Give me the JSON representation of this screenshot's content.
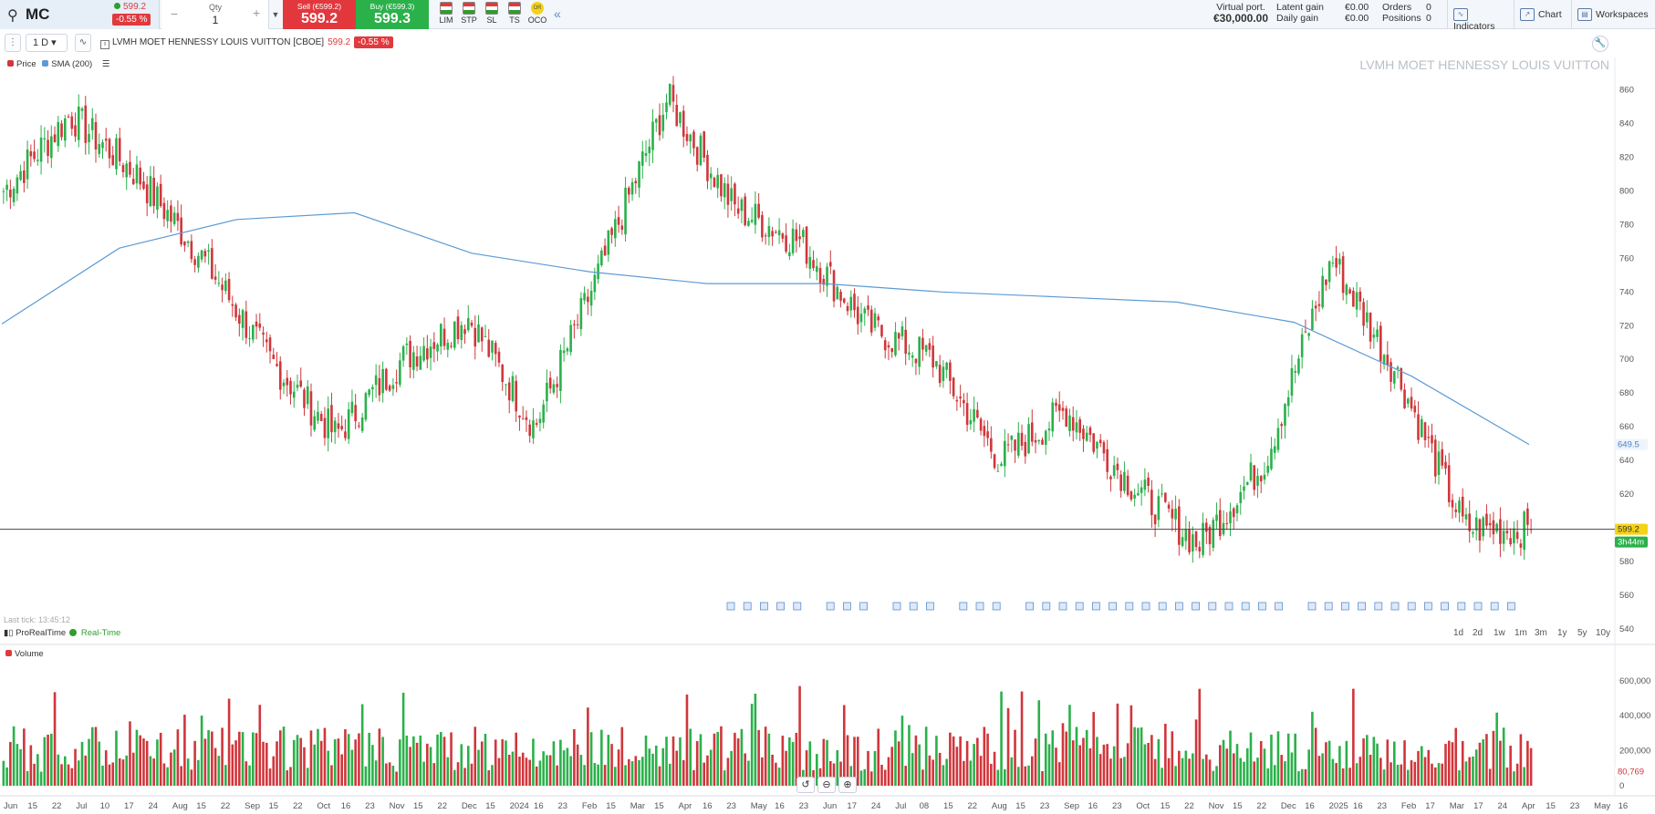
{
  "header": {
    "symbol": "MC",
    "last_price": "599.2",
    "change_pct": "-0.55 %",
    "qty_label": "Qty",
    "qty_value": "1",
    "sell_label": "Sell (€599.2)",
    "sell_price": "599.2",
    "buy_label": "Buy (€599.3)",
    "buy_price": "599.3",
    "order_types": [
      "LIM",
      "STP",
      "SL",
      "TS",
      "OCO"
    ],
    "virtual_port_label": "Virtual port.",
    "virtual_port_value": "€30,000.00",
    "latent_gain_label": "Latent gain",
    "latent_gain_value": "€0.00",
    "daily_gain_label": "Daily gain",
    "daily_gain_value": "€0.00",
    "orders_label": "Orders",
    "orders_value": "0",
    "positions_label": "Positions",
    "positions_value": "0",
    "indicators_btn": "Indicators",
    "chart_btn": "Chart",
    "workspaces_btn": "Workspaces"
  },
  "chartbar": {
    "timeframe": "1 D",
    "instrument": "LVMH MOET HENNESSY LOUIS VUITTON [CBOE]",
    "price": "599.2",
    "change_pct": "-0.55 %"
  },
  "legend": {
    "price": "Price",
    "sma": "SMA (200)",
    "volume": "Volume"
  },
  "watermark": "LVMH MOET HENNESSY LOUIS VUITTON",
  "status": {
    "last_tick": "Last tick: 13:45:12",
    "feed": "ProRealTime",
    "realtime": "Real-Time"
  },
  "periods": [
    "1d",
    "2d",
    "1w",
    "1m",
    "3m",
    "1y",
    "5y",
    "10y"
  ],
  "price_axis": [
    "860",
    "840",
    "820",
    "800",
    "780",
    "760",
    "740",
    "720",
    "700",
    "680",
    "660",
    "640",
    "620",
    "580",
    "560",
    "540"
  ],
  "price_tags": {
    "sma": "649.5",
    "last": "599.2",
    "countdown": "3h44m"
  },
  "volume_axis": [
    "600,000",
    "400,000",
    "200,000",
    "0"
  ],
  "volume_tag": "80,769",
  "colors": {
    "up": "#2ab14a",
    "down": "#d0363b",
    "sma": "#5b9bd5",
    "sell": "#e2383d",
    "buy": "#2ab14a"
  },
  "chart_data": {
    "type": "candlestick",
    "title": "LVMH MOET HENNESSY LOUIS VUITTON [CBOE]",
    "series": [
      {
        "name": "Price",
        "note": "daily closes (approx.)",
        "x": [
          "Jun",
          "Jul",
          "Aug",
          "Sep",
          "Oct",
          "Nov",
          "Dec",
          "2024",
          "Feb",
          "Mar",
          "Apr",
          "May",
          "Jun",
          "Jul",
          "Aug",
          "Sep",
          "Oct",
          "Nov",
          "Dec",
          "2025",
          "Feb",
          "Mar",
          "Apr",
          "May"
        ],
        "values": [
          800,
          845,
          810,
          760,
          700,
          655,
          700,
          725,
          660,
          755,
          855,
          790,
          770,
          720,
          700,
          640,
          670,
          625,
          590,
          640,
          760,
          690,
          600,
          599
        ]
      },
      {
        "name": "SMA (200)",
        "x": [
          "Jun",
          "Aug",
          "Sep",
          "Oct",
          "Jan",
          "Feb",
          "Mar",
          "May",
          "Jun",
          "Aug",
          "Oct",
          "Dec",
          "2025",
          "Mar"
        ],
        "values": [
          721,
          766,
          783,
          787,
          763,
          752,
          745,
          745,
          740,
          737,
          734,
          722,
          690,
          649.5
        ]
      },
      {
        "name": "Volume",
        "last": 80769,
        "range": [
          0,
          750000
        ]
      }
    ],
    "x_ticks": [
      "Jun",
      "15",
      "22",
      "Jul",
      "10",
      "17",
      "24",
      "Aug",
      "15",
      "22",
      "Sep",
      "15",
      "22",
      "Oct",
      "16",
      "23",
      "Nov",
      "15",
      "22",
      "Dec",
      "15",
      "2024",
      "16",
      "23",
      "Feb",
      "15",
      "Mar",
      "15",
      "Apr",
      "16",
      "23",
      "May",
      "16",
      "23",
      "Jun",
      "17",
      "24",
      "Jul",
      "08",
      "15",
      "22",
      "Aug",
      "15",
      "23",
      "Sep",
      "16",
      "23",
      "Oct",
      "15",
      "22",
      "Nov",
      "15",
      "22",
      "Dec",
      "16",
      "2025",
      "16",
      "23",
      "Feb",
      "17",
      "Mar",
      "17",
      "24",
      "Apr",
      "15",
      "23",
      "May",
      "16"
    ],
    "ylim": [
      540,
      870
    ],
    "current_price": 599.2
  }
}
